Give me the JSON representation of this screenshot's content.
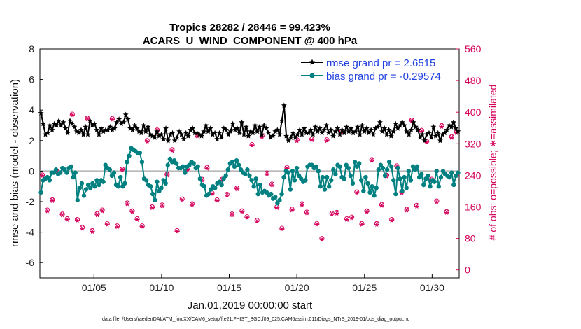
{
  "chart_data": {
    "type": "line",
    "title_line1": "Tropics 28282 / 28446 = 99.423%",
    "title_line2": "ACARS_U_WIND_COMPONENT @ 400 hPa",
    "xlabel": "Jan.01,2019 00:00:00 start",
    "ylabel": "rmse and bias (model - observation)",
    "y2label": "# of obs: o=possible; ∗=assimilated",
    "ylim": [
      -7,
      8
    ],
    "y2lim": [
      -20,
      560
    ],
    "xlim": [
      1.0,
      32.0
    ],
    "x_ticks": [
      5,
      10,
      15,
      20,
      25,
      30
    ],
    "x_tick_labels": [
      "01/05",
      "01/10",
      "01/15",
      "01/20",
      "01/25",
      "01/30"
    ],
    "y_ticks": [
      -6,
      -4,
      -2,
      0,
      2,
      4,
      6,
      8
    ],
    "y_tick_labels": [
      "-6",
      "-4",
      "-2",
      "0",
      "2",
      "4",
      "6",
      "8"
    ],
    "y2_ticks": [
      0,
      80,
      160,
      240,
      320,
      400,
      480,
      560
    ],
    "y2_tick_labels": [
      "0",
      "80",
      "160",
      "240",
      "320",
      "400",
      "480",
      "560"
    ],
    "zero_line": 0,
    "series": [
      {
        "name": "rmse grand pr = 2.6515",
        "color": "#000000",
        "marker": "star",
        "values": [
          3.8,
          3.1,
          2.4,
          2.5,
          3.0,
          2.7,
          3.1,
          3.0,
          3.3,
          3.0,
          3.2,
          2.8,
          2.5,
          3.3,
          3.1,
          2.9,
          2.6,
          2.5,
          2.7,
          2.4,
          2.9,
          2.4,
          3.3,
          3.0,
          3.1,
          2.7,
          2.4,
          2.8,
          2.6,
          2.7,
          2.7,
          2.9,
          2.7,
          2.8,
          3.2,
          3.4,
          3.1,
          3.2,
          3.7,
          3.4,
          2.8,
          2.7,
          3.0,
          2.8,
          2.6,
          2.5,
          3.0,
          2.6,
          2.9,
          2.4,
          2.3,
          2.2,
          2.6,
          2.3,
          2.4,
          2.1,
          2.8,
          2.0,
          2.4,
          2.5,
          2.0,
          2.2,
          2.6,
          2.4,
          2.1,
          2.5,
          2.3,
          2.7,
          2.8,
          2.5,
          2.5,
          2.4,
          2.3,
          2.6,
          3.0,
          2.6,
          2.8,
          2.4,
          2.5,
          2.1,
          2.5,
          2.2,
          2.8,
          2.7,
          2.4,
          2.6,
          3.1,
          2.7,
          2.8,
          2.5,
          3.2,
          2.4,
          2.9,
          2.3,
          2.6,
          2.5,
          3.0,
          2.6,
          2.9,
          2.4,
          3.0,
          2.8,
          2.5,
          2.2,
          2.3,
          2.6,
          2.7,
          2.4,
          3.3,
          4.3,
          2.3,
          2.0,
          2.2,
          2.5,
          2.2,
          2.4,
          2.7,
          2.4,
          2.8,
          2.5,
          2.5,
          2.7,
          2.4,
          2.9,
          2.6,
          2.8,
          2.5,
          2.7,
          3.0,
          2.5,
          2.7,
          2.3,
          2.6,
          2.8,
          2.4,
          2.7,
          2.5,
          2.9,
          2.6,
          2.8,
          2.5,
          2.6,
          2.9,
          2.4,
          3.0,
          2.6,
          2.8,
          2.5,
          2.7,
          2.4,
          2.8,
          2.9,
          3.2,
          2.6,
          2.8,
          2.4,
          2.7,
          2.3,
          2.6,
          3.1,
          2.8,
          3.0,
          3.2,
          3.0,
          2.6,
          2.4,
          2.7,
          3.2,
          2.9,
          2.7,
          2.2,
          2.4,
          2.0,
          2.4,
          2.5,
          2.2,
          2.9,
          2.3,
          2.5,
          2.0,
          2.4,
          2.5,
          2.7,
          3.0,
          2.9,
          3.2,
          2.8,
          2.6
        ]
      },
      {
        "name": "bias grand pr = -0.29574",
        "color": "#008080",
        "marker": "dot",
        "values": [
          -1.4,
          -0.6,
          -0.5,
          -0.4,
          -0.6,
          -0.1,
          -0.1,
          0.1,
          -0.2,
          -0.1,
          0.2,
          0.1,
          -0.1,
          0.2,
          0.3,
          -0.4,
          -0.1,
          -1.9,
          -1.1,
          -0.8,
          -1.6,
          -1.2,
          -0.9,
          -1.1,
          -0.8,
          -1.0,
          -0.6,
          -0.9,
          -0.6,
          -0.7,
          0.4,
          0.2,
          0.1,
          -0.3,
          -0.1,
          -0.9,
          -1.0,
          -0.4,
          -1.0,
          -0.8,
          0.6,
          1.0,
          1.5,
          1.4,
          1.3,
          1.2,
          1.2,
          0.6,
          -0.5,
          -0.6,
          -0.9,
          -1.0,
          -1.5,
          -1.9,
          -0.7,
          -1.3,
          -1.1,
          -0.6,
          -0.8,
          0.4,
          0.8,
          0.6,
          0.7,
          0.5,
          0.2,
          0.2,
          0.3,
          -0.1,
          0.3,
          0.4,
          0.6,
          0.5,
          0.2,
          0.3,
          -0.5,
          -0.9,
          -1.0,
          -1.6,
          -1.5,
          -1.2,
          -1.0,
          -1.1,
          -0.8,
          -0.7,
          -0.9,
          -0.5,
          -0.3,
          0.1,
          0.5,
          0.6,
          0.3,
          0.7,
          0.4,
          0.1,
          -0.1,
          -0.2,
          0.1,
          -0.3,
          -0.6,
          -1.0,
          -0.5,
          -1.5,
          -0.9,
          -1.4,
          -1.3,
          -1.4,
          -1.6,
          -1.5,
          -1.8,
          -1.7,
          -2.1,
          -1.9,
          -1.5,
          -0.4,
          0.0,
          -0.1,
          -1.2,
          0.0,
          -0.6,
          0.2,
          -0.3,
          -0.5,
          -0.7,
          -0.6,
          0.3,
          0.4,
          0.4,
          0.2,
          0.3,
          0.0,
          -1.0,
          -0.4,
          -1.2,
          -0.4,
          -1.0,
          -0.6,
          0.1,
          -0.2,
          0.4,
          0.3,
          -0.4,
          -0.5,
          0.4,
          0.2,
          -0.3,
          -0.8,
          0.6,
          0.3,
          0.5,
          -0.6,
          -1.3,
          -0.4,
          -0.8,
          -1.4,
          -1.0,
          -1.6,
          -1.1,
          0.1,
          0.4,
          0.2,
          -0.3,
          0.1,
          0.6,
          0.3,
          -0.6,
          -1.5,
          0.2,
          -0.5,
          -1.3,
          -0.4,
          -1.1,
          0.0,
          -0.6,
          0.3,
          0.1,
          0.3,
          -0.4,
          -0.2,
          -0.9,
          -0.5,
          -0.3,
          -1.0,
          -0.6,
          -0.7,
          0.0,
          -1.0,
          -0.4,
          0.0,
          -0.2,
          -0.3,
          -0.4,
          -0.1,
          -0.9,
          -0.3,
          -0.1
        ]
      }
    ],
    "obs_counts": {
      "possible": [
        241,
        152,
        178,
        250,
        142,
        130,
        395,
        128,
        108,
        385,
        100,
        143,
        152,
        118,
        384,
        112,
        256,
        170,
        150,
        130,
        112,
        328,
        160,
        355,
        165,
        243,
        305,
        100,
        180,
        256,
        168,
        342,
        230,
        260,
        195,
        178,
        230,
        192,
        142,
        208,
        150,
        135,
        318,
        126,
        340,
        246,
        218,
        160,
        106,
        260,
        154,
        330,
        168,
        147,
        332,
        118,
        80,
        330,
        144,
        146,
        352,
        130,
        134,
        198,
        118,
        150,
        280,
        118,
        166,
        240,
        128,
        264,
        198,
        154,
        380,
        164,
        354,
        326,
        230,
        175,
        366,
        148,
        338,
        350
      ],
      "assimilated": [
        240,
        150,
        176,
        248,
        140,
        128,
        393,
        126,
        106,
        383,
        98,
        140,
        150,
        115,
        382,
        110,
        254,
        168,
        148,
        128,
        110,
        326,
        158,
        353,
        163,
        241,
        303,
        98,
        178,
        254,
        166,
        340,
        228,
        258,
        193,
        176,
        228,
        190,
        140,
        206,
        148,
        133,
        316,
        124,
        338,
        244,
        216,
        158,
        104,
        258,
        152,
        328,
        166,
        145,
        330,
        116,
        78,
        328,
        142,
        144,
        350,
        128,
        132,
        196,
        116,
        148,
        278,
        116,
        164,
        238,
        126,
        262,
        196,
        152,
        378,
        162,
        352,
        324,
        228,
        173,
        364,
        146,
        336,
        348
      ],
      "marker_color": "#d4005a"
    },
    "legend_position": "top-right"
  },
  "footer": "data file: /Users/raeder/DAI/ATM_forcXX/CAM6_setup/f.e21.FHIST_BGC.f09_025.CAM6assim.011/Diags_NTrS_2019-01/obs_diag_output.nc"
}
